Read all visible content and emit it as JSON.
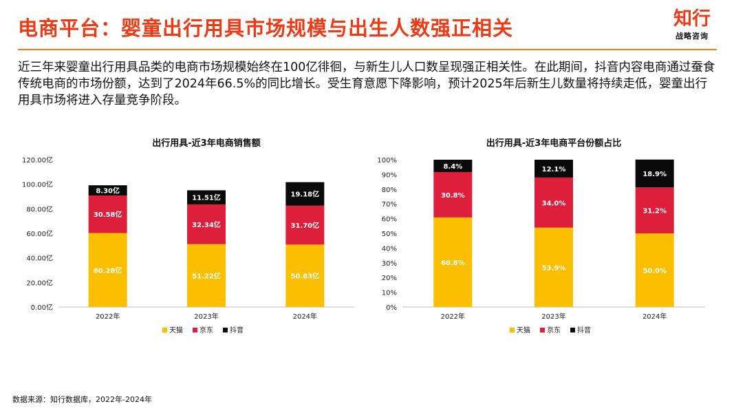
{
  "header": {
    "title": "电商平台：婴童出行用具市场规模与出生人数强正相关",
    "logo_main": "知行",
    "logo_sub": "战略咨询"
  },
  "intro": {
    "text": "近三年来婴童出行用具品类的电商市场规模始终在100亿徘徊，与新生儿人口数呈现强正相关性。在此期间，抖音内容电商通过蚕食传统电商的市场份额，达到了2024年66.5%的同比增长。受生育意愿下降影响，预计2025年后新生儿数量将持续走低，婴童出行用具市场将进入存量竞争阶段。"
  },
  "source": "数据来源：知行数据库，2022年-2024年",
  "colors": {
    "tmall": "#fcbf00",
    "jd": "#dd1f3c",
    "douyin": "#0a0a0a",
    "accent": "#ee3a14"
  },
  "chart_data": [
    {
      "type": "bar",
      "stacked": true,
      "title": "出行用具-近3年电商销售额",
      "categories": [
        "2022年",
        "2023年",
        "2024年"
      ],
      "series": [
        {
          "name": "天猫",
          "values": [
            60.28,
            51.22,
            50.83
          ],
          "labels": [
            "60.28亿",
            "51.22亿",
            "50.83亿"
          ]
        },
        {
          "name": "京东",
          "values": [
            30.58,
            32.34,
            31.7
          ],
          "labels": [
            "30.58亿",
            "32.34亿",
            "31.70亿"
          ]
        },
        {
          "name": "抖音",
          "values": [
            8.3,
            11.51,
            19.18
          ],
          "labels": [
            "8.30亿",
            "11.51亿",
            "19.18亿"
          ]
        }
      ],
      "ylim": [
        0,
        120
      ],
      "yticks": [
        "0.00亿",
        "20.00亿",
        "40.00亿",
        "60.00亿",
        "80.00亿",
        "100.00亿",
        "120.00亿"
      ],
      "legend": "bottom",
      "grid": false
    },
    {
      "type": "bar",
      "stacked": true,
      "title": "出行用具-近3年电商平台份额占比",
      "categories": [
        "2022年",
        "2023年",
        "2024年"
      ],
      "series": [
        {
          "name": "天猫",
          "values": [
            60.8,
            53.9,
            50.0
          ],
          "labels": [
            "60.8%",
            "53.9%",
            "50.0%"
          ]
        },
        {
          "name": "京东",
          "values": [
            30.8,
            34.0,
            31.2
          ],
          "labels": [
            "30.8%",
            "34.0%",
            "31.2%"
          ]
        },
        {
          "name": "抖音",
          "values": [
            8.4,
            12.1,
            18.9
          ],
          "labels": [
            "8.4%",
            "12.1%",
            "18.9%"
          ]
        }
      ],
      "ylim": [
        0,
        100
      ],
      "yticks": [
        "0%",
        "10%",
        "20%",
        "30%",
        "40%",
        "50%",
        "60%",
        "70%",
        "80%",
        "90%",
        "100%"
      ],
      "legend": "bottom",
      "grid": false
    }
  ]
}
